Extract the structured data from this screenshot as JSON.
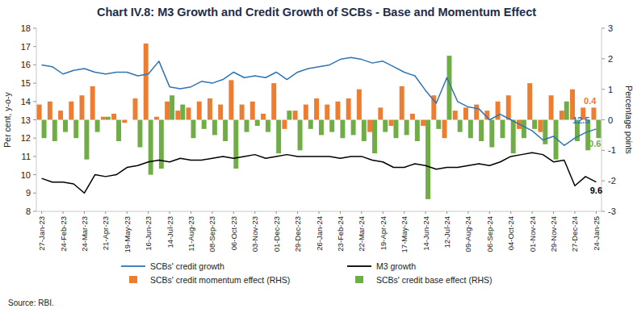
{
  "chart_data": {
    "type": "bar",
    "title": "Chart IV.8: M3 Growth and Credit Growth of SCBs - Base and Momentum Effect",
    "y_label": "Per cent, y-o-y",
    "y2_label": "Percentage points",
    "source": "Source: RBI.",
    "categories": [
      "27-Jan-23",
      null,
      "24-Feb-23",
      null,
      "24-Mar-23",
      null,
      "21-Apr-23",
      null,
      "19-May-23",
      null,
      "16-Jun-23",
      null,
      "14-Jul-23",
      null,
      "11-Aug-23",
      null,
      "08-Sep-23",
      null,
      "06-Oct-23",
      null,
      "03-Nov-23",
      null,
      "01-Dec-23",
      null,
      "29-Dec-23",
      null,
      "26-Jan-24",
      null,
      "23-Feb-24",
      null,
      "22-Mar-24",
      null,
      "19-Apr-24",
      null,
      "17-May-24",
      null,
      "14-Jun-24",
      null,
      "12-Jul-24",
      null,
      "09-Aug-24",
      null,
      "06-Sep-24",
      null,
      "04-Oct-24",
      null,
      "01-Nov-24",
      null,
      "29-Nov-24",
      null,
      "27-Dec-24",
      null,
      "24-Jan-25"
    ],
    "ylim": [
      8,
      18
    ],
    "yticks": [
      8,
      9,
      10,
      11,
      12,
      13,
      14,
      15,
      16,
      17,
      18
    ],
    "y2lim": [
      -3,
      3
    ],
    "y2ticks": [
      -3,
      -2,
      -1,
      0,
      1,
      2,
      3
    ],
    "grid": false,
    "legend": "bottom",
    "series": [
      {
        "name": "SCBs' credit growth",
        "type": "line",
        "color": "#2f74b5",
        "values": [
          16.0,
          15.9,
          15.5,
          15.7,
          15.8,
          15.6,
          15.5,
          15.6,
          15.6,
          15.4,
          15.5,
          16.2,
          14.8,
          14.7,
          14.8,
          15.1,
          15.0,
          15.2,
          15.6,
          15.3,
          15.4,
          15.3,
          15.6,
          15.2,
          15.6,
          15.8,
          15.9,
          16.0,
          16.3,
          16.4,
          16.3,
          16.1,
          16.2,
          15.9,
          15.6,
          15.4,
          14.6,
          13.9,
          15.3,
          14.0,
          13.7,
          13.6,
          13.0,
          13.3,
          13.0,
          12.7,
          12.4,
          11.9,
          12.1,
          11.6,
          12.0,
          12.3,
          12.5
        ],
        "value_labels": [
          null,
          null,
          null,
          null,
          null,
          null,
          null,
          null,
          null,
          null,
          null,
          null,
          null,
          null,
          null,
          null,
          null,
          null,
          null,
          null,
          null,
          null,
          null,
          null,
          null,
          null,
          null,
          null,
          null,
          null,
          null,
          null,
          null,
          null,
          null,
          null,
          null,
          null,
          null,
          null,
          null,
          null,
          null,
          null,
          null,
          null,
          null,
          null,
          null,
          null,
          null,
          null,
          "12.5"
        ]
      },
      {
        "name": "M3 growth",
        "type": "line",
        "color": "#000000",
        "values": [
          9.8,
          9.6,
          9.6,
          9.5,
          9.0,
          10.0,
          9.9,
          10.0,
          10.4,
          10.5,
          10.7,
          10.8,
          10.7,
          10.9,
          10.8,
          10.8,
          10.9,
          11.0,
          10.9,
          11.0,
          11.1,
          10.9,
          11.0,
          11.1,
          11.0,
          11.0,
          11.0,
          11.0,
          10.9,
          11.0,
          11.0,
          10.8,
          10.7,
          10.4,
          10.4,
          10.6,
          10.5,
          10.3,
          10.4,
          10.4,
          10.5,
          10.6,
          10.5,
          10.7,
          11.0,
          11.1,
          11.2,
          11.1,
          10.7,
          10.8,
          9.4,
          9.9,
          9.6
        ],
        "value_labels": [
          null,
          null,
          null,
          null,
          null,
          null,
          null,
          null,
          null,
          null,
          null,
          null,
          null,
          null,
          null,
          null,
          null,
          null,
          null,
          null,
          null,
          null,
          null,
          null,
          null,
          null,
          null,
          null,
          null,
          null,
          null,
          null,
          null,
          null,
          null,
          null,
          null,
          null,
          null,
          null,
          null,
          null,
          null,
          null,
          null,
          null,
          null,
          null,
          null,
          null,
          null,
          null,
          "9.6"
        ]
      },
      {
        "name": "SCBs' credit momentum effect (RHS)",
        "type": "bar",
        "axis": "y2",
        "color": "#ed7d31",
        "values": [
          0.5,
          0.6,
          0.3,
          0.6,
          0.8,
          1.1,
          0.1,
          0.2,
          -0.1,
          0.7,
          2.5,
          0.1,
          0.6,
          0.3,
          0.4,
          0.6,
          0.7,
          0.5,
          1.3,
          0.5,
          0.6,
          0.2,
          1.2,
          -0.3,
          0.3,
          0.5,
          0.7,
          0.5,
          0.6,
          0.7,
          1.0,
          -0.4,
          0.4,
          -0.2,
          1.1,
          0.2,
          -0.2,
          0.8,
          -0.6,
          0.3,
          0.4,
          0.5,
          0.3,
          0.6,
          0.8,
          -0.3,
          1.2,
          -0.4,
          0.8,
          0.3,
          1.0,
          0.4,
          0.4
        ],
        "value_labels": [
          null,
          null,
          null,
          null,
          null,
          null,
          null,
          null,
          null,
          null,
          null,
          null,
          null,
          null,
          null,
          null,
          null,
          null,
          null,
          null,
          null,
          null,
          null,
          null,
          null,
          null,
          null,
          null,
          null,
          null,
          null,
          null,
          null,
          null,
          null,
          null,
          null,
          null,
          null,
          null,
          null,
          null,
          null,
          null,
          null,
          null,
          null,
          null,
          null,
          null,
          null,
          null,
          "0.4"
        ]
      },
      {
        "name": "SCBs' credit base effect (RHS)",
        "type": "bar",
        "axis": "y2",
        "color": "#70ad47",
        "values": [
          -0.6,
          -0.7,
          -0.4,
          -0.6,
          -1.3,
          -0.4,
          0.1,
          -0.7,
          0.0,
          -0.9,
          -1.8,
          -1.6,
          0.8,
          0.5,
          -0.6,
          -0.3,
          -0.5,
          -0.7,
          -1.6,
          -0.4,
          -0.2,
          -0.4,
          -1.1,
          0.3,
          -1.0,
          -0.3,
          -0.5,
          -0.4,
          -0.6,
          -0.5,
          -0.7,
          -1.1,
          -0.4,
          -0.6,
          -0.5,
          -0.7,
          -2.6,
          -0.3,
          2.1,
          -0.4,
          -0.6,
          -0.7,
          -0.9,
          -0.6,
          -1.1,
          -0.6,
          -0.3,
          -0.8,
          -1.3,
          0.6,
          -0.7,
          -1.0,
          -0.6
        ],
        "value_labels": [
          null,
          null,
          null,
          null,
          null,
          null,
          null,
          null,
          null,
          null,
          null,
          null,
          null,
          null,
          null,
          null,
          null,
          null,
          null,
          null,
          null,
          null,
          null,
          null,
          null,
          null,
          null,
          null,
          null,
          null,
          null,
          null,
          null,
          null,
          null,
          null,
          null,
          null,
          null,
          null,
          null,
          null,
          null,
          null,
          null,
          null,
          null,
          null,
          null,
          null,
          null,
          null,
          "-0.6"
        ]
      }
    ]
  }
}
